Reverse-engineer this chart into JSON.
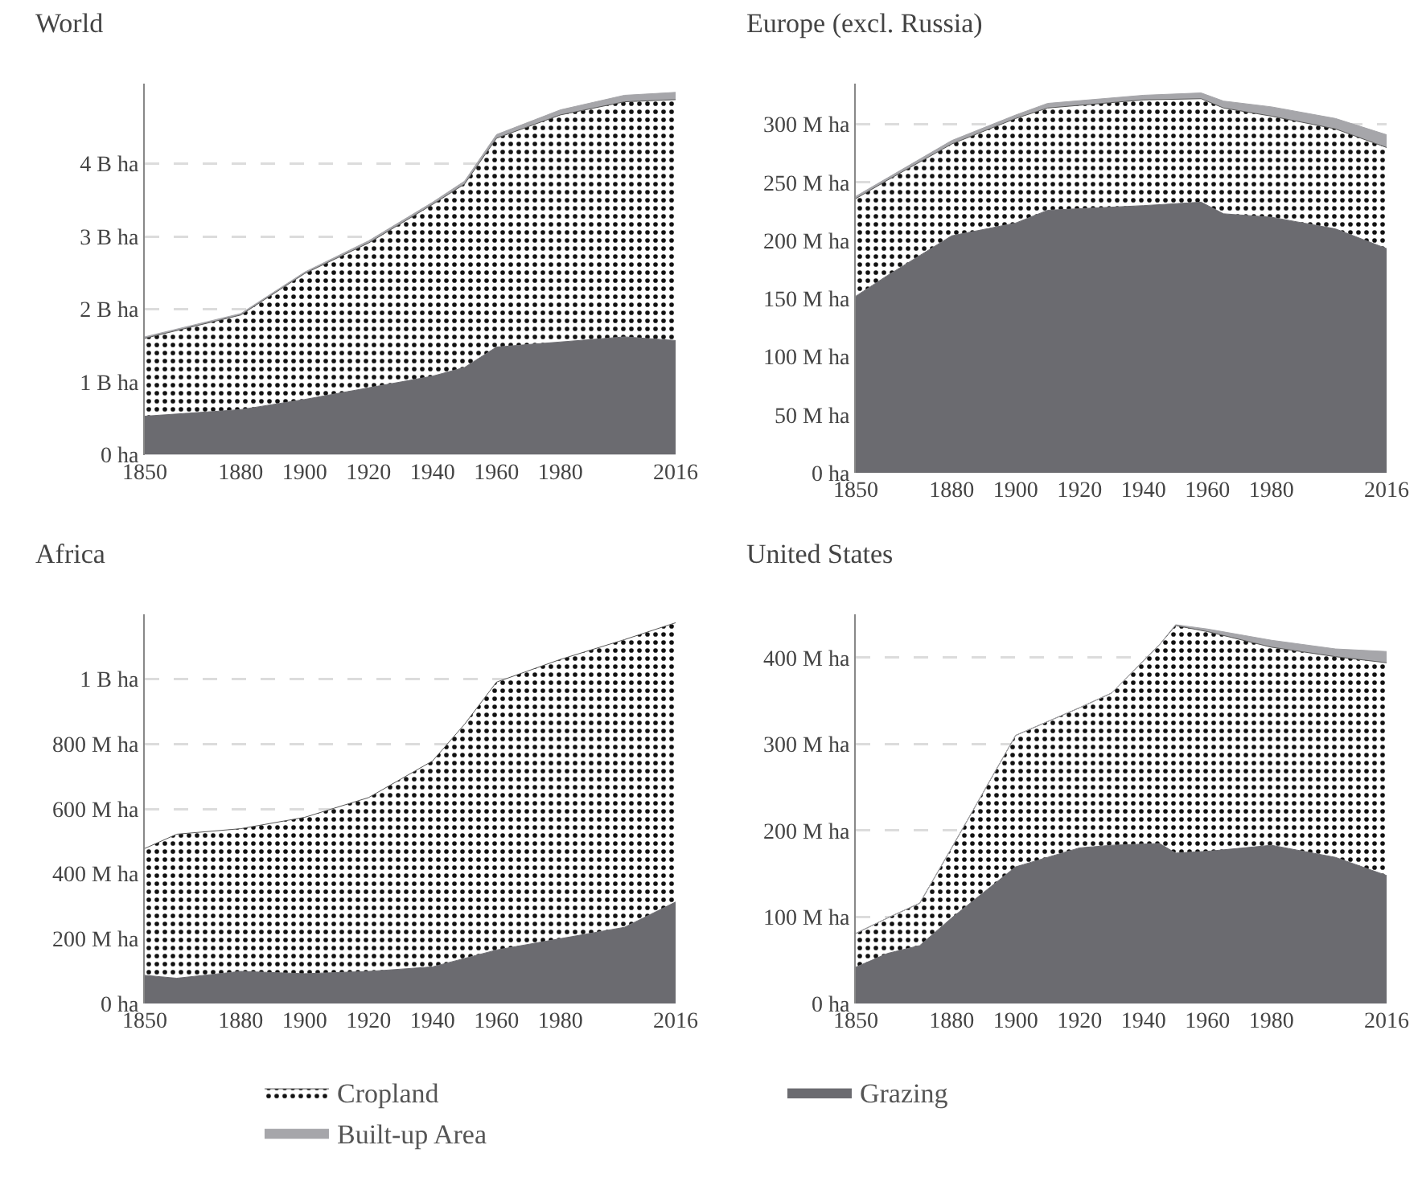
{
  "chart_data": [
    {
      "type": "area",
      "title": "World",
      "stacked": true,
      "legend": "bottom",
      "grid": "y",
      "x": [
        1850,
        1880,
        1900,
        1920,
        1940,
        1950,
        1960,
        1980,
        2000,
        2016
      ],
      "series": [
        {
          "name": "Grazing",
          "color": "#6b6b70",
          "values": [
            530000000,
            620000000,
            760000000,
            920000000,
            1080000000,
            1200000000,
            1480000000,
            1550000000,
            1620000000,
            1570000000
          ]
        },
        {
          "name": "Cropland",
          "color": "#ffffff",
          "values": [
            1070000000,
            1300000000,
            1730000000,
            1990000000,
            2360000000,
            2520000000,
            2870000000,
            3120000000,
            3230000000,
            3310000000
          ]
        },
        {
          "name": "Built-up Area",
          "color": "#a6a6aa",
          "values": [
            20000000,
            20000000,
            20000000,
            30000000,
            30000000,
            40000000,
            50000000,
            70000000,
            90000000,
            100000000
          ]
        }
      ],
      "xlim": [
        1850,
        2016
      ],
      "xticks": [
        1850,
        1880,
        1900,
        1920,
        1940,
        1960,
        1980,
        2016
      ],
      "ylim": [
        0,
        5100000000
      ],
      "yticks": [
        {
          "value": 0,
          "label": "0 ha"
        },
        {
          "value": 1000000000,
          "label": "1 B ha"
        },
        {
          "value": 2000000000,
          "label": "2 B ha"
        },
        {
          "value": 3000000000,
          "label": "3 B ha"
        },
        {
          "value": 4000000000,
          "label": "4 B ha"
        }
      ]
    },
    {
      "type": "area",
      "title": "Europe (excl. Russia)",
      "stacked": true,
      "grid": "y",
      "x": [
        1850,
        1860,
        1880,
        1900,
        1910,
        1940,
        1958,
        1965,
        1980,
        2000,
        2016
      ],
      "series": [
        {
          "color": "#6b6b70",
          "values": [
            152000000,
            170000000,
            204000000,
            215000000,
            226000000,
            230000000,
            233000000,
            223000000,
            220000000,
            210000000,
            193000000
          ]
        },
        {
          "color": "#ffffff",
          "values": [
            84000000,
            82000000,
            79000000,
            90000000,
            88000000,
            91000000,
            89000000,
            91000000,
            87000000,
            86000000,
            87000000
          ]
        },
        {
          "color": "#a6a6aa",
          "values": [
            2000000,
            2000000,
            3000000,
            3000000,
            4000000,
            4000000,
            5000000,
            6000000,
            8000000,
            9000000,
            11000000
          ]
        }
      ],
      "xlim": [
        1850,
        2016
      ],
      "xticks": [
        1850,
        1880,
        1900,
        1920,
        1940,
        1960,
        1980,
        2016
      ],
      "ylim": [
        0,
        335000000
      ],
      "yticks": [
        {
          "value": 0,
          "label": "0 ha"
        },
        {
          "value": 50000000,
          "label": "50 M ha"
        },
        {
          "value": 100000000,
          "label": "100 M ha"
        },
        {
          "value": 150000000,
          "label": "150 M ha"
        },
        {
          "value": 200000000,
          "label": "200 M ha"
        },
        {
          "value": 250000000,
          "label": "250 M ha"
        },
        {
          "value": 300000000,
          "label": "300 M ha"
        }
      ]
    },
    {
      "type": "area",
      "title": "Africa",
      "stacked": true,
      "grid": "y",
      "x": [
        1850,
        1860,
        1880,
        1900,
        1920,
        1940,
        1950,
        1960,
        1980,
        2000,
        2016
      ],
      "series": [
        {
          "color": "#6b6b70",
          "values": [
            87000000,
            78000000,
            99000000,
            92000000,
            99000000,
            113000000,
            139000000,
            165000000,
            200000000,
            235000000,
            313000000
          ]
        },
        {
          "color": "#ffffff",
          "values": [
            391000000,
            444000000,
            440000000,
            482000000,
            536000000,
            635000000,
            722000000,
            826000000,
            861000000,
            887000000,
            861000000
          ]
        }
      ],
      "xlim": [
        1850,
        2016
      ],
      "xticks": [
        1850,
        1880,
        1900,
        1920,
        1940,
        1960,
        1980,
        2016
      ],
      "ylim": [
        0,
        1200000000
      ],
      "yticks": [
        {
          "value": 0,
          "label": "0 ha"
        },
        {
          "value": 200000000,
          "label": "200 M ha"
        },
        {
          "value": 400000000,
          "label": "400 M ha"
        },
        {
          "value": 600000000,
          "label": "600 M ha"
        },
        {
          "value": 800000000,
          "label": "800 M ha"
        },
        {
          "value": 1000000000,
          "label": "1 B ha"
        }
      ]
    },
    {
      "type": "area",
      "title": "United States",
      "stacked": true,
      "grid": "y",
      "x": [
        1850,
        1860,
        1870,
        1880,
        1900,
        1920,
        1930,
        1945,
        1950,
        1960,
        1980,
        2000,
        2016
      ],
      "series": [
        {
          "color": "#6b6b70",
          "values": [
            42000000,
            58000000,
            67000000,
            99000000,
            158000000,
            180000000,
            183000000,
            185000000,
            174000000,
            176000000,
            183000000,
            169000000,
            148000000
          ]
        },
        {
          "color": "#ffffff",
          "values": [
            39000000,
            41000000,
            49000000,
            81000000,
            152000000,
            162000000,
            176000000,
            230000000,
            263000000,
            254000000,
            229000000,
            232000000,
            246000000
          ]
        },
        {
          "color": "#a6a6aa",
          "values": [
            0,
            0,
            0,
            0,
            0,
            0,
            0,
            0,
            1000000,
            3000000,
            8000000,
            9000000,
            13000000
          ]
        }
      ],
      "xlim": [
        1850,
        2016
      ],
      "xticks": [
        1850,
        1880,
        1900,
        1920,
        1940,
        1960,
        1980,
        2016
      ],
      "ylim": [
        0,
        450000000
      ],
      "yticks": [
        {
          "value": 0,
          "label": "0 ha"
        },
        {
          "value": 100000000,
          "label": "100 M ha"
        },
        {
          "value": 200000000,
          "label": "200 M ha"
        },
        {
          "value": 300000000,
          "label": "300 M ha"
        },
        {
          "value": 400000000,
          "label": "400 M ha"
        }
      ]
    }
  ]
}
